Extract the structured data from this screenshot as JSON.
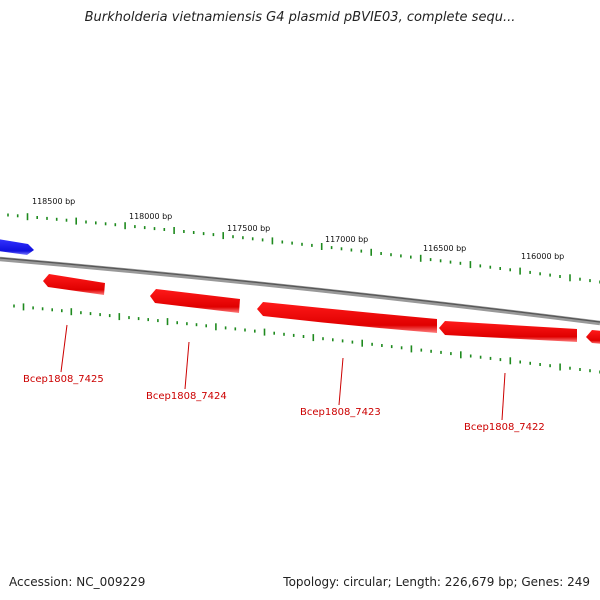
{
  "title": "Burkholderia vietnamiensis G4 plasmid pBVIE03, complete sequ...",
  "footer": {
    "accession": "Accession: NC_009229",
    "summary": "Topology: circular; Length: 226,679 bp; Genes: 249"
  },
  "colors": {
    "forward_gene": "#1a1aff",
    "reverse_gene": "#ff0000",
    "backbone": "#888888",
    "ticks": "#1e8a1e",
    "gene_label": "#cc0000"
  },
  "scale": {
    "labels": [
      "118500 bp",
      "118000 bp",
      "117500 bp",
      "117000 bp",
      "116500 bp",
      "116000 bp"
    ]
  },
  "genes": [
    {
      "name": "Bcep1808_7425",
      "strand": "reverse"
    },
    {
      "name": "Bcep1808_7424",
      "strand": "reverse"
    },
    {
      "name": "Bcep1808_7423",
      "strand": "reverse"
    },
    {
      "name": "Bcep1808_7422",
      "strand": "reverse"
    }
  ]
}
